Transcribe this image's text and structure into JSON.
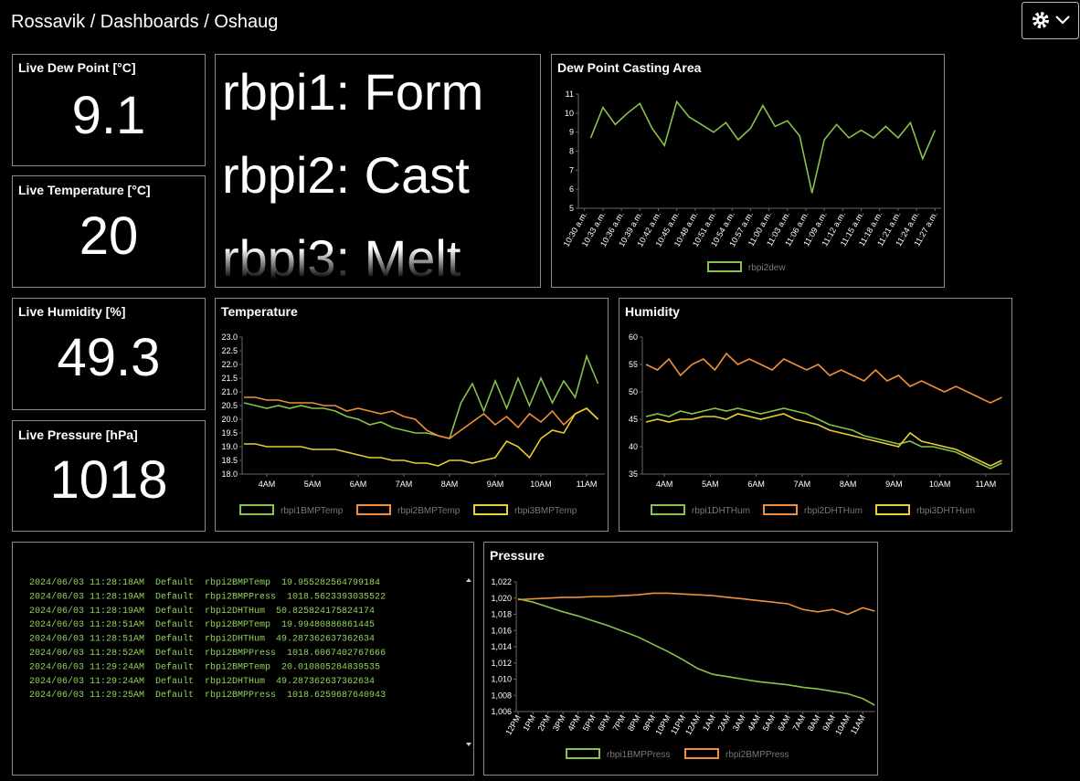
{
  "header": {
    "breadcrumb": "Rossavik / Dashboards / Oshaug"
  },
  "stats": [
    {
      "title": "Live Dew Point [°C]",
      "value": 9.1
    },
    {
      "title": "Live Temperature [°C]",
      "value": 20
    },
    {
      "title": "Live Humidity [%]",
      "value": 49.3
    },
    {
      "title": "Live Pressure [hPa]",
      "value": 1018
    }
  ],
  "text_panel": {
    "lines": [
      "rbpi1: Form",
      "rbpi2: Cast",
      "rbpi3: Melt"
    ]
  },
  "log": {
    "lines": [
      "2024/06/03 11:28:18AM  Default  rbpi2BMPTemp  19.955282564799184",
      "2024/06/03 11:28:19AM  Default  rbpi2BMPPress  1018.5623393035522",
      "2024/06/03 11:28:19AM  Default  rbpi2DHTHum  50.825824175824174",
      "2024/06/03 11:28:51AM  Default  rbpi2BMPTemp  19.99480886861445",
      "2024/06/03 11:28:51AM  Default  rbpi2DHTHum  49.287362637362634",
      "2024/06/03 11:28:52AM  Default  rbpi2BMPPress  1018.6067402767666",
      "2024/06/03 11:29:24AM  Default  rbpi2BMPTemp  20.010805284839535",
      "2024/06/03 11:29:24AM  Default  rbpi2DHTHum  49.287362637362634",
      "2024/06/03 11:29:25AM  Default  rbpi2BMPPress  1018.6259687640943"
    ]
  },
  "chart_data": [
    {
      "type": "line",
      "title": "Dew Point Casting Area",
      "x": [
        631,
        633,
        635,
        637,
        639,
        641,
        643,
        645,
        647,
        649,
        651,
        653,
        655,
        657,
        659,
        661,
        663,
        665,
        667,
        669,
        671,
        673,
        675,
        677,
        679,
        681,
        683,
        685,
        687
      ],
      "xlim": [
        629,
        688
      ],
      "xticks": [
        {
          "value": 630,
          "label": "10:30 a.m."
        },
        {
          "value": 633,
          "label": "10:33 a.m."
        },
        {
          "value": 636,
          "label": "10:36 a.m."
        },
        {
          "value": 639,
          "label": "10:39 a.m."
        },
        {
          "value": 642,
          "label": "10:42 a.m."
        },
        {
          "value": 645,
          "label": "10:45 a.m."
        },
        {
          "value": 648,
          "label": "10:48 a.m."
        },
        {
          "value": 651,
          "label": "10:51 a.m."
        },
        {
          "value": 654,
          "label": "10:54 a.m."
        },
        {
          "value": 657,
          "label": "10:57 a.m."
        },
        {
          "value": 660,
          "label": "11:00 a.m."
        },
        {
          "value": 663,
          "label": "11:03 a.m."
        },
        {
          "value": 666,
          "label": "11:06 a.m."
        },
        {
          "value": 669,
          "label": "11:09 a.m."
        },
        {
          "value": 672,
          "label": "11:12 a.m."
        },
        {
          "value": 675,
          "label": "11:15 a.m."
        },
        {
          "value": 678,
          "label": "11:18 a.m."
        },
        {
          "value": 681,
          "label": "11:21 a.m."
        },
        {
          "value": 684,
          "label": "11:24 a.m."
        },
        {
          "value": 687,
          "label": "11:27 a.m."
        }
      ],
      "ylim": [
        5,
        11
      ],
      "yticks": [
        5,
        6,
        7,
        8,
        9,
        10,
        11
      ],
      "series": [
        {
          "name": "rbpi2dew",
          "color": "#86c34a",
          "values": [
            8.7,
            10.3,
            9.4,
            10.0,
            10.5,
            9.2,
            8.3,
            10.6,
            9.8,
            9.4,
            9.0,
            9.5,
            8.6,
            9.2,
            10.4,
            9.3,
            9.6,
            8.8,
            5.8,
            8.6,
            9.4,
            8.7,
            9.1,
            8.7,
            9.3,
            8.7,
            9.5,
            7.6,
            9.1
          ]
        }
      ]
    },
    {
      "type": "line",
      "title": "Temperature",
      "x": [
        3.5,
        3.75,
        4,
        4.25,
        4.5,
        4.75,
        5,
        5.25,
        5.5,
        5.75,
        6,
        6.25,
        6.5,
        6.75,
        7,
        7.25,
        7.5,
        7.75,
        8,
        8.25,
        8.5,
        8.75,
        9,
        9.25,
        9.5,
        9.75,
        10,
        10.25,
        10.5,
        10.75,
        11,
        11.25
      ],
      "xlim": [
        3.46,
        11.4
      ],
      "xticks": [
        {
          "value": 4,
          "label": "4AM"
        },
        {
          "value": 5,
          "label": "5AM"
        },
        {
          "value": 6,
          "label": "6AM"
        },
        {
          "value": 7,
          "label": "7AM"
        },
        {
          "value": 8,
          "label": "8AM"
        },
        {
          "value": 9,
          "label": "9AM"
        },
        {
          "value": 10,
          "label": "10AM"
        },
        {
          "value": 11,
          "label": "11AM"
        }
      ],
      "ylim": [
        18,
        23
      ],
      "yticks": [
        {
          "value": 18,
          "label": "18.0"
        },
        18.5,
        {
          "value": 19,
          "label": "19.0"
        },
        19.5,
        {
          "value": 20,
          "label": "20.0"
        },
        20.5,
        {
          "value": 21,
          "label": "21.0"
        },
        21.5,
        {
          "value": 22,
          "label": "22.0"
        },
        22.5,
        {
          "value": 23,
          "label": "23.0"
        }
      ],
      "series": [
        {
          "name": "rbpi1BMPTemp",
          "color": "#86c34a",
          "values": [
            20.6,
            20.5,
            20.4,
            20.5,
            20.4,
            20.5,
            20.4,
            20.4,
            20.3,
            20.1,
            20.0,
            19.8,
            19.9,
            19.7,
            19.6,
            19.5,
            19.5,
            19.4,
            19.3,
            20.6,
            21.3,
            20.3,
            21.4,
            20.4,
            21.5,
            20.5,
            21.5,
            20.6,
            21.4,
            20.8,
            22.3,
            21.3
          ]
        },
        {
          "name": "rbpi2BMPTemp",
          "color": "#ef8f3c",
          "values": [
            20.8,
            20.8,
            20.7,
            20.7,
            20.6,
            20.6,
            20.6,
            20.5,
            20.5,
            20.3,
            20.4,
            20.3,
            20.2,
            20.3,
            20.1,
            20.0,
            19.6,
            19.4,
            19.3,
            19.6,
            19.9,
            20.2,
            19.8,
            20.1,
            19.7,
            20.2,
            19.9,
            20.3,
            19.8,
            20.2,
            20.4,
            20.0
          ]
        },
        {
          "name": "rbpi3BMPTemp",
          "color": "#e8cf2f",
          "values": [
            19.1,
            19.1,
            19.0,
            19.0,
            19.0,
            19.0,
            18.9,
            18.9,
            18.9,
            18.8,
            18.7,
            18.6,
            18.6,
            18.5,
            18.5,
            18.4,
            18.4,
            18.3,
            18.5,
            18.5,
            18.4,
            18.5,
            18.6,
            19.2,
            19.0,
            18.6,
            19.3,
            19.6,
            19.5,
            20.2,
            20.4,
            20.0
          ]
        }
      ]
    },
    {
      "type": "line",
      "title": "Humidity",
      "x": [
        3.6,
        3.85,
        4.1,
        4.35,
        4.6,
        4.85,
        5.1,
        5.35,
        5.6,
        5.85,
        6.1,
        6.35,
        6.6,
        6.85,
        7.1,
        7.35,
        7.6,
        7.85,
        8.1,
        8.35,
        8.6,
        8.85,
        9.1,
        9.35,
        9.6,
        9.85,
        10.1,
        10.35,
        10.6,
        10.85,
        11.1,
        11.35
      ],
      "xlim": [
        3.52,
        11.52
      ],
      "xticks": [
        {
          "value": 4,
          "label": "4AM"
        },
        {
          "value": 5,
          "label": "5AM"
        },
        {
          "value": 6,
          "label": "6AM"
        },
        {
          "value": 7,
          "label": "7AM"
        },
        {
          "value": 8,
          "label": "8AM"
        },
        {
          "value": 9,
          "label": "9AM"
        },
        {
          "value": 10,
          "label": "10AM"
        },
        {
          "value": 11,
          "label": "11AM"
        }
      ],
      "ylim": [
        35,
        60
      ],
      "yticks": [
        35,
        40,
        45,
        50,
        55,
        60
      ],
      "series": [
        {
          "name": "rbpi1DHTHum",
          "color": "#86c34a",
          "values": [
            45.5,
            46,
            45.5,
            46.5,
            46,
            46.5,
            47,
            46.5,
            47,
            46.5,
            46,
            46.5,
            47,
            46.5,
            46,
            45,
            44,
            43.5,
            43,
            42,
            41.5,
            41,
            40.5,
            41,
            40,
            40,
            39.5,
            39,
            38,
            37,
            36,
            37
          ]
        },
        {
          "name": "rbpi2DHTHum",
          "color": "#ef8f3c",
          "values": [
            55,
            54,
            56,
            53,
            55,
            56,
            54,
            57,
            55,
            56,
            55,
            54,
            56,
            55,
            54,
            55,
            53,
            54,
            53,
            52,
            54,
            52,
            53,
            51,
            52,
            51,
            50,
            51,
            50,
            49,
            48,
            49
          ]
        },
        {
          "name": "rbpi3DHTHum",
          "color": "#e8cf2f",
          "values": [
            44.5,
            45,
            44.5,
            45,
            45,
            45.5,
            45.5,
            45,
            46,
            45.5,
            45,
            45.5,
            46,
            45,
            44.5,
            44,
            43,
            42.5,
            42,
            41.5,
            41,
            40.5,
            40,
            42.5,
            41,
            40.5,
            40,
            39.5,
            38.5,
            37.5,
            36.5,
            37.5
          ]
        }
      ]
    },
    {
      "type": "line",
      "title": "Pressure",
      "x": [
        12,
        13,
        14,
        15,
        16,
        17,
        18,
        19,
        20,
        21,
        22,
        23,
        24,
        25,
        26,
        27,
        28,
        29,
        30,
        31,
        32,
        33,
        34,
        35,
        35.8
      ],
      "xlim": [
        11.88,
        35.84
      ],
      "xticks": [
        {
          "value": 12,
          "label": "12PM"
        },
        {
          "value": 13,
          "label": "1PM"
        },
        {
          "value": 14,
          "label": "2PM"
        },
        {
          "value": 15,
          "label": "3PM"
        },
        {
          "value": 16,
          "label": "4PM"
        },
        {
          "value": 17,
          "label": "5PM"
        },
        {
          "value": 18,
          "label": "6PM"
        },
        {
          "value": 19,
          "label": "7PM"
        },
        {
          "value": 20,
          "label": "8PM"
        },
        {
          "value": 21,
          "label": "9PM"
        },
        {
          "value": 22,
          "label": "10PM"
        },
        {
          "value": 23,
          "label": "11PM"
        },
        {
          "value": 24,
          "label": "12AM"
        },
        {
          "value": 25,
          "label": "1AM"
        },
        {
          "value": 26,
          "label": "2AM"
        },
        {
          "value": 27,
          "label": "3AM"
        },
        {
          "value": 28,
          "label": "4AM"
        },
        {
          "value": 29,
          "label": "5AM"
        },
        {
          "value": 30,
          "label": "6AM"
        },
        {
          "value": 31,
          "label": "7AM"
        },
        {
          "value": 32,
          "label": "8AM"
        },
        {
          "value": 33,
          "label": "9AM"
        },
        {
          "value": 34,
          "label": "10AM"
        },
        {
          "value": 35,
          "label": "11AM"
        }
      ],
      "ylim": [
        1006,
        1022
      ],
      "yticks": [
        {
          "value": 1006,
          "label": "1,006"
        },
        {
          "value": 1008,
          "label": "1,008"
        },
        {
          "value": 1010,
          "label": "1,010"
        },
        {
          "value": 1012,
          "label": "1,012"
        },
        {
          "value": 1014,
          "label": "1,014"
        },
        {
          "value": 1016,
          "label": "1,016"
        },
        {
          "value": 1018,
          "label": "1,018"
        },
        {
          "value": 1020,
          "label": "1,020"
        },
        {
          "value": 1022,
          "label": "1,022"
        }
      ],
      "series": [
        {
          "name": "rbpi1BMPPress",
          "color": "#86c34a",
          "values": [
            1019.9,
            1019.5,
            1018.9,
            1018.3,
            1017.8,
            1017.2,
            1016.6,
            1015.9,
            1015.2,
            1014.3,
            1013.4,
            1012.4,
            1011.3,
            1010.6,
            1010.3,
            1010.0,
            1009.7,
            1009.5,
            1009.3,
            1009.0,
            1008.8,
            1008.5,
            1008.2,
            1007.6,
            1006.8
          ]
        },
        {
          "name": "rbpi2BMPPress",
          "color": "#ef8f3c",
          "values": [
            1019.8,
            1019.9,
            1020.0,
            1020.1,
            1020.1,
            1020.2,
            1020.2,
            1020.3,
            1020.4,
            1020.6,
            1020.6,
            1020.5,
            1020.4,
            1020.3,
            1020.1,
            1019.9,
            1019.7,
            1019.5,
            1019.3,
            1018.6,
            1018.3,
            1018.6,
            1018.0,
            1018.8,
            1018.4
          ]
        }
      ]
    }
  ]
}
